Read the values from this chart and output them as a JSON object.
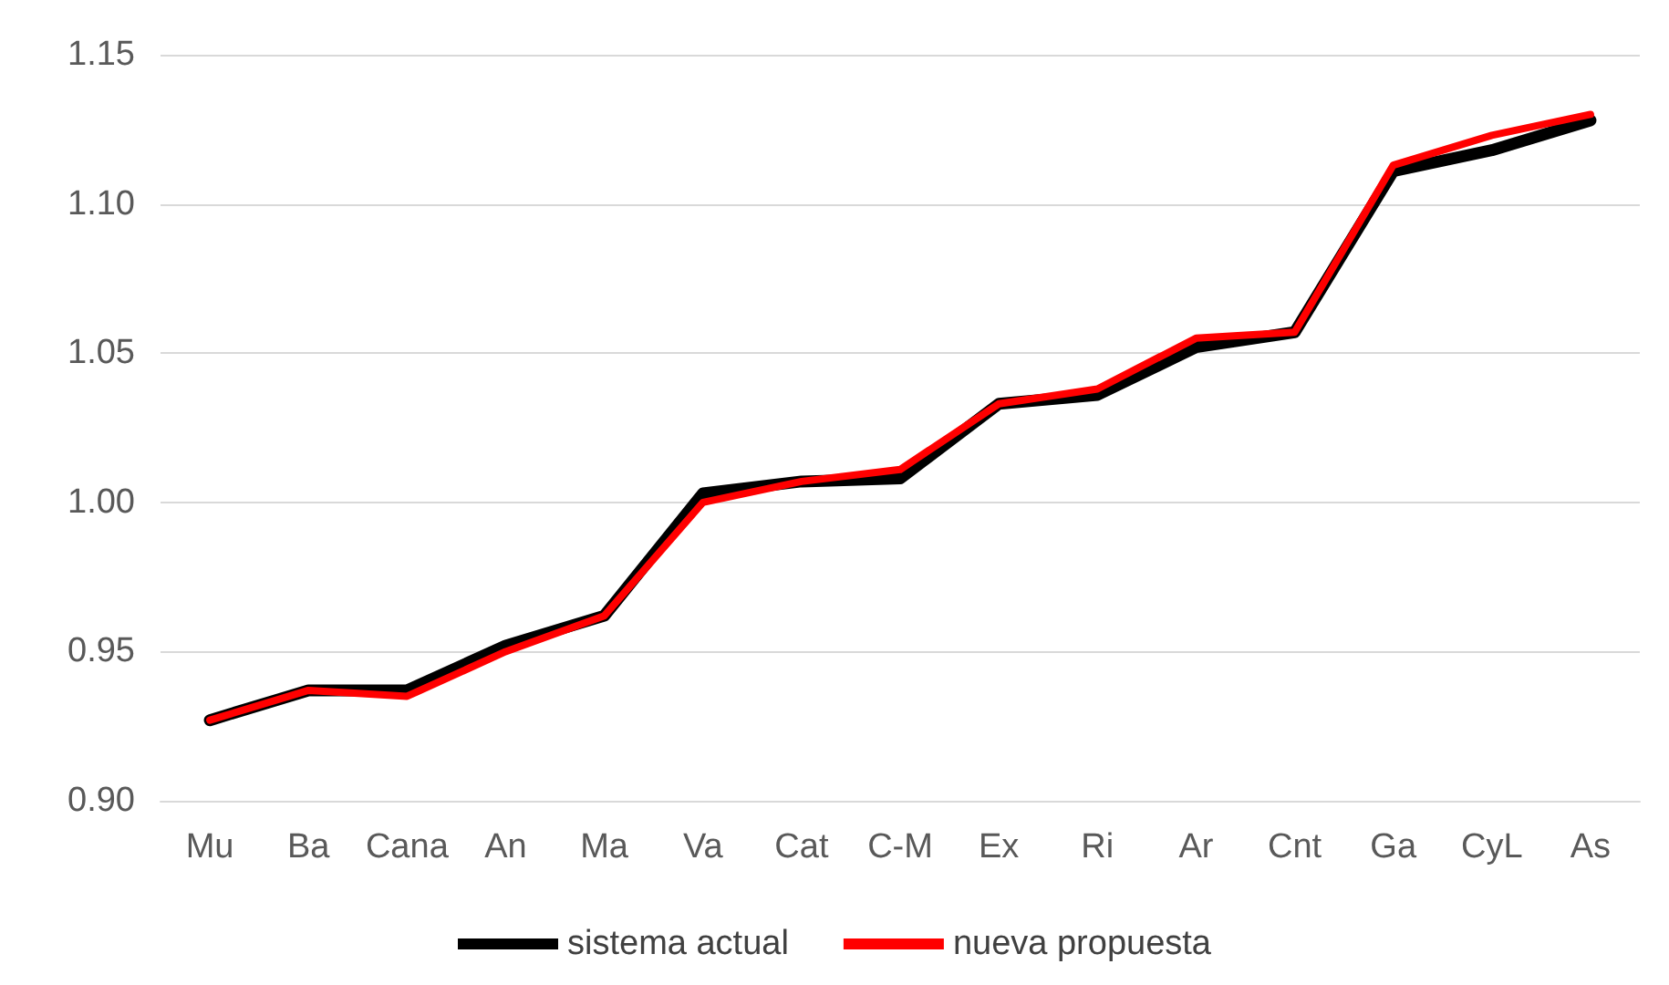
{
  "chart_data": {
    "type": "line",
    "categories": [
      "Mu",
      "Ba",
      "Cana",
      "An",
      "Ma",
      "Va",
      "Cat",
      "C-M",
      "Ex",
      "Ri",
      "Ar",
      "Cnt",
      "Ga",
      "CyL",
      "As"
    ],
    "series": [
      {
        "name": "sistema actual",
        "color": "#000000",
        "values": [
          0.927,
          0.937,
          0.937,
          0.952,
          0.962,
          1.003,
          1.007,
          1.008,
          1.033,
          1.036,
          1.052,
          1.057,
          1.111,
          1.118,
          1.128
        ]
      },
      {
        "name": "nueva propuesta",
        "color": "#ff0000",
        "values": [
          0.927,
          0.937,
          0.935,
          0.95,
          0.962,
          1.0,
          1.007,
          1.011,
          1.033,
          1.038,
          1.055,
          1.057,
          1.113,
          1.123,
          1.13
        ]
      }
    ],
    "ylim": [
      0.9,
      1.15
    ],
    "yticks": [
      {
        "value": 0.9,
        "label": "0.90"
      },
      {
        "value": 0.95,
        "label": "0.95"
      },
      {
        "value": 1.0,
        "label": "1.00"
      },
      {
        "value": 1.05,
        "label": "1.05"
      },
      {
        "value": 1.1,
        "label": "1.10"
      },
      {
        "value": 1.15,
        "label": "1.15"
      }
    ],
    "grid": "y",
    "legend": "bottom",
    "marker": "none",
    "line_style": "solid"
  }
}
